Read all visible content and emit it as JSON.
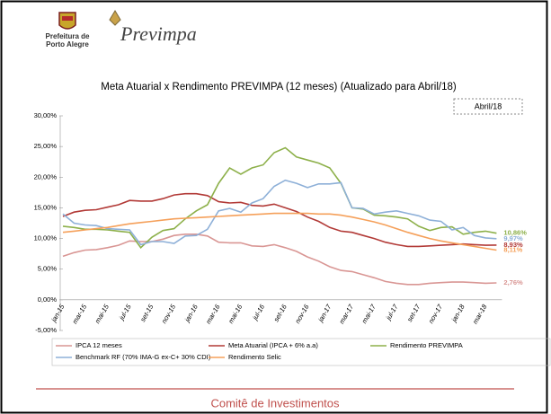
{
  "header": {
    "org": [
      "Prefeitura de",
      "Porto Alegre"
    ],
    "brand": "Previmpa"
  },
  "chart_data": {
    "type": "line",
    "title": "Meta Atuarial x Rendimento PREVIMPA (12 meses) (Atualizado para Abril/18)",
    "annotation": "Abril/18",
    "categories": [
      "jan-15",
      null,
      "mar-15",
      null,
      "mai-15",
      null,
      "jul-15",
      null,
      "set-15",
      null,
      "nov-15",
      null,
      "jan-16",
      null,
      "mar-16",
      null,
      "mai-16",
      null,
      "jul-16",
      null,
      "set-16",
      null,
      "nov-16",
      null,
      "jan-17",
      null,
      "mar-17",
      null,
      "mai-17",
      null,
      "jul-17",
      null,
      "set-17",
      null,
      "nov-17",
      null,
      "jan-18",
      null,
      "mar-18",
      null
    ],
    "ylim": [
      -5,
      30
    ],
    "yticks": [
      {
        "value": -5,
        "label": "-5,00%"
      },
      {
        "value": 0,
        "label": "0,00%"
      },
      {
        "value": 5,
        "label": "5,00%"
      },
      {
        "value": 10,
        "label": "10,00%"
      },
      {
        "value": 15,
        "label": "15,00%"
      },
      {
        "value": 20,
        "label": "20,00%"
      },
      {
        "value": 25,
        "label": "25,00%"
      },
      {
        "value": 30,
        "label": "30,00%"
      }
    ],
    "grid": false,
    "legend": "bottom",
    "series": [
      {
        "name": "IPCA 12 meses",
        "color": "#d99694",
        "values": [
          7.1,
          7.7,
          8.1,
          8.2,
          8.5,
          8.9,
          9.6,
          9.5,
          9.5,
          9.9,
          10.5,
          10.7,
          10.7,
          10.4,
          9.4,
          9.3,
          9.3,
          8.8,
          8.7,
          9.0,
          8.5,
          7.9,
          7.0,
          6.3,
          5.4,
          4.8,
          4.6,
          4.1,
          3.6,
          3.0,
          2.7,
          2.5,
          2.5,
          2.7,
          2.8,
          2.9,
          2.9,
          2.8,
          2.7,
          2.76
        ],
        "value_labels": [
          null,
          null,
          null,
          null,
          null,
          null,
          null,
          null,
          null,
          null,
          null,
          null,
          null,
          null,
          null,
          null,
          null,
          null,
          null,
          null,
          null,
          null,
          null,
          null,
          null,
          null,
          null,
          null,
          null,
          null,
          null,
          null,
          null,
          null,
          null,
          null,
          null,
          null,
          null,
          "2,76%"
        ]
      },
      {
        "name": "Meta Atuarial (IPCA + 6% a.a)",
        "color": "#b23a37",
        "values": [
          13.6,
          14.3,
          14.6,
          14.7,
          15.1,
          15.5,
          16.2,
          16.1,
          16.1,
          16.5,
          17.1,
          17.3,
          17.3,
          17.0,
          16.0,
          15.8,
          15.9,
          15.4,
          15.3,
          15.6,
          15.0,
          14.4,
          13.5,
          12.8,
          11.8,
          11.2,
          11.0,
          10.5,
          10.0,
          9.4,
          9.0,
          8.7,
          8.7,
          8.8,
          8.9,
          9.0,
          9.1,
          9.0,
          8.9,
          8.93
        ],
        "value_labels": [
          null,
          null,
          null,
          null,
          null,
          null,
          null,
          null,
          null,
          null,
          null,
          null,
          null,
          null,
          null,
          null,
          null,
          null,
          null,
          null,
          null,
          null,
          null,
          null,
          null,
          null,
          null,
          null,
          null,
          null,
          null,
          null,
          null,
          null,
          null,
          null,
          null,
          null,
          null,
          "8,93%"
        ]
      },
      {
        "name": "Rendimento PREVIMPA",
        "color": "#8db04a",
        "values": [
          12.0,
          11.8,
          11.5,
          11.5,
          11.4,
          11.2,
          11.0,
          8.5,
          10.2,
          11.3,
          11.6,
          13.2,
          14.5,
          15.5,
          19.0,
          21.5,
          20.5,
          21.5,
          22.0,
          24.0,
          24.8,
          23.3,
          22.8,
          22.3,
          21.5,
          19.0,
          15.0,
          14.8,
          13.8,
          13.7,
          13.5,
          13.2,
          12.0,
          11.3,
          11.8,
          11.9,
          10.7,
          11.0,
          11.2,
          10.86
        ],
        "value_labels": [
          null,
          null,
          null,
          null,
          null,
          null,
          null,
          null,
          null,
          null,
          null,
          null,
          null,
          null,
          null,
          null,
          null,
          null,
          null,
          null,
          null,
          null,
          null,
          null,
          null,
          null,
          null,
          null,
          null,
          null,
          null,
          null,
          null,
          null,
          null,
          null,
          null,
          null,
          null,
          "10,86%"
        ]
      },
      {
        "name": "Benchmark RF (70% IMA-G ex-C+ 30% CDI)",
        "color": "#8eb0d8",
        "values": [
          14.0,
          12.5,
          12.2,
          12.1,
          11.6,
          11.5,
          11.4,
          9.0,
          9.5,
          9.5,
          9.2,
          10.4,
          10.5,
          11.5,
          14.5,
          14.9,
          14.3,
          15.8,
          16.5,
          18.5,
          19.5,
          19.0,
          18.3,
          18.9,
          18.9,
          19.1,
          15.0,
          14.9,
          14.0,
          14.3,
          14.5,
          14.1,
          13.7,
          13.0,
          12.8,
          11.4,
          11.8,
          10.5,
          10.1,
          9.97
        ],
        "value_labels": [
          null,
          null,
          null,
          null,
          null,
          null,
          null,
          null,
          null,
          null,
          null,
          null,
          null,
          null,
          null,
          null,
          null,
          null,
          null,
          null,
          null,
          null,
          null,
          null,
          null,
          null,
          null,
          null,
          null,
          null,
          null,
          null,
          null,
          null,
          null,
          null,
          null,
          null,
          null,
          "9,97%"
        ]
      },
      {
        "name": "Rendimento Selic",
        "color": "#f5a05a",
        "values": [
          11.0,
          11.2,
          11.4,
          11.6,
          11.8,
          12.1,
          12.4,
          12.6,
          12.8,
          13.0,
          13.2,
          13.3,
          13.4,
          13.5,
          13.6,
          13.7,
          13.8,
          13.9,
          14.0,
          14.1,
          14.1,
          14.1,
          14.1,
          14.0,
          14.0,
          13.8,
          13.5,
          13.1,
          12.7,
          12.2,
          11.6,
          11.0,
          10.5,
          10.0,
          9.6,
          9.3,
          9.0,
          8.7,
          8.4,
          8.11
        ],
        "value_labels": [
          null,
          null,
          null,
          null,
          null,
          null,
          null,
          null,
          null,
          null,
          null,
          null,
          null,
          null,
          null,
          null,
          null,
          null,
          null,
          null,
          null,
          null,
          null,
          null,
          null,
          null,
          null,
          null,
          null,
          null,
          null,
          null,
          null,
          null,
          null,
          null,
          null,
          null,
          null,
          "8,11%"
        ]
      }
    ]
  },
  "footer": "Comitê de Investimentos"
}
